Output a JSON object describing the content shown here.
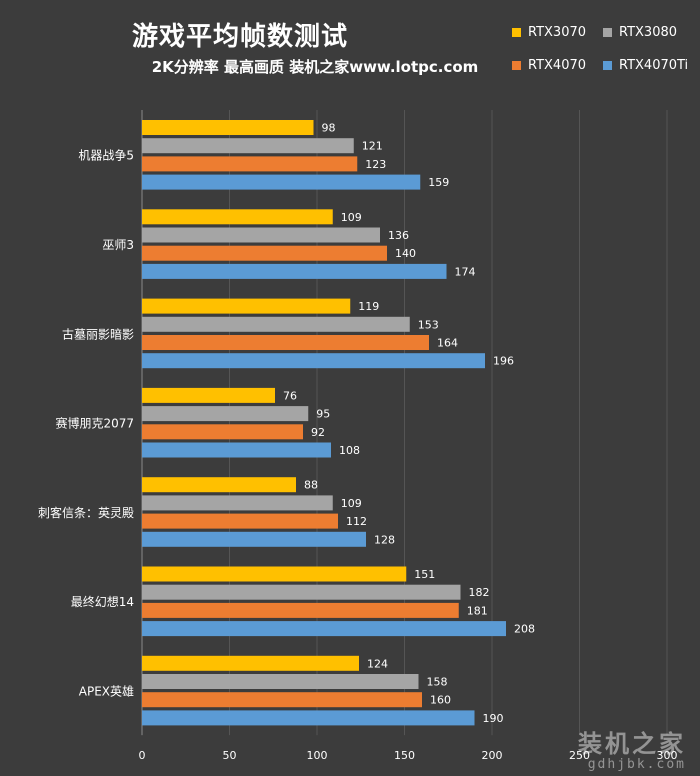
{
  "title": "游戏平均帧数测试",
  "subtitle": "2K分辨率 最高画质 装机之家www.lotpc.com",
  "watermark": {
    "main": "装机之家",
    "sub": "gdhjbk.com"
  },
  "chart_data": {
    "type": "bar",
    "orientation": "horizontal",
    "title": "游戏平均帧数测试",
    "subtitle": "2K分辨率 最高画质 装机之家www.lotpc.com",
    "categories": [
      "机器战争5",
      "巫师3",
      "古墓丽影暗影",
      "赛博朋克2077",
      "刺客信条：英灵殿",
      "最终幻想14",
      "APEX英雄"
    ],
    "series": [
      {
        "name": "RTX3070",
        "color": "#ffc000",
        "values": [
          98,
          109,
          119,
          76,
          88,
          151,
          124
        ]
      },
      {
        "name": "RTX3080",
        "color": "#a5a5a5",
        "values": [
          121,
          136,
          153,
          95,
          109,
          182,
          158
        ]
      },
      {
        "name": "RTX4070",
        "color": "#ed7d31",
        "values": [
          123,
          140,
          164,
          92,
          112,
          181,
          160
        ]
      },
      {
        "name": "RTX4070Ti",
        "color": "#5b9bd5",
        "values": [
          159,
          174,
          196,
          108,
          128,
          208,
          190
        ]
      }
    ],
    "xlim": [
      0,
      300
    ],
    "xticks": [
      0,
      50,
      100,
      150,
      200,
      250,
      300
    ],
    "grid": true,
    "legend": "top-right",
    "data_labels": true
  }
}
